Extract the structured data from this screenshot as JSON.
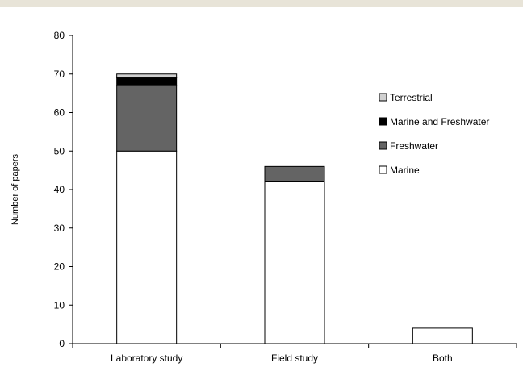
{
  "chart_data": {
    "type": "bar",
    "stacked": true,
    "title": "",
    "xlabel": "",
    "ylabel": "Number of papers",
    "ylim": [
      0,
      80
    ],
    "yticks": [
      0,
      10,
      20,
      30,
      40,
      50,
      60,
      70,
      80
    ],
    "grid": false,
    "legend_position": "right",
    "categories": [
      "Laboratory study",
      "Field study",
      "Both"
    ],
    "series": [
      {
        "name": "Marine",
        "values": [
          50,
          42,
          4
        ],
        "color": "#ffffff"
      },
      {
        "name": "Freshwater",
        "values": [
          17,
          4,
          0
        ],
        "color": "#646464"
      },
      {
        "name": "Marine and Freshwater",
        "values": [
          2,
          0,
          0
        ],
        "color": "#000000"
      },
      {
        "name": "Terrestrial",
        "values": [
          1,
          0,
          0
        ],
        "color": "#d0d0d0"
      }
    ],
    "legend_order": [
      "Terrestrial",
      "Marine and Freshwater",
      "Freshwater",
      "Marine"
    ]
  }
}
